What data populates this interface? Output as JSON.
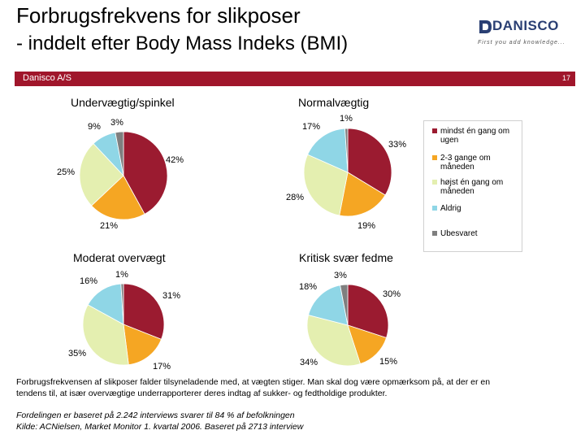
{
  "title_line1": "Forbrugsfrekvens for slikposer",
  "title_line2": "- inddelt efter Body Mass Indeks (BMI)",
  "logo": {
    "name": "DANISCO",
    "tagline": "First you add knowledge..."
  },
  "band": {
    "company": "Danisco A/S",
    "page_number": "17"
  },
  "colors": {
    "band": "#a0162b",
    "logo": "#2a3f73"
  },
  "chart_data": [
    {
      "type": "pie",
      "title": "Undervægtig/spinkel",
      "categories": [
        "mindst én gang om ugen",
        "2-3 gange om måneden",
        "højst én gang om måneden",
        "Aldrig",
        "Ubesvaret"
      ],
      "values": [
        42,
        21,
        25,
        9,
        3
      ],
      "labels": [
        "42%",
        "21%",
        "25%",
        "9%",
        "3%"
      ],
      "colors": [
        "#9b1b30",
        "#f5a623",
        "#e4efb0",
        "#8fd6e6",
        "#7f7f7f"
      ]
    },
    {
      "type": "pie",
      "title": "Normalvægtig",
      "categories": [
        "mindst én gang om ugen",
        "2-3 gange om måneden",
        "højst én gang om måneden",
        "Aldrig",
        "Ubesvaret"
      ],
      "values": [
        33,
        19,
        28,
        17,
        1
      ],
      "labels": [
        "33%",
        "19%",
        "28%",
        "17%",
        "1%"
      ],
      "colors": [
        "#9b1b30",
        "#f5a623",
        "#e4efb0",
        "#8fd6e6",
        "#7f7f7f"
      ]
    },
    {
      "type": "pie",
      "title": "Moderat overvægt",
      "categories": [
        "mindst én gang om ugen",
        "2-3 gange om måneden",
        "højst én gang om måneden",
        "Aldrig",
        "Ubesvaret"
      ],
      "values": [
        31,
        17,
        35,
        16,
        1
      ],
      "labels": [
        "31%",
        "17%",
        "35%",
        "16%",
        "1%"
      ],
      "colors": [
        "#9b1b30",
        "#f5a623",
        "#e4efb0",
        "#8fd6e6",
        "#7f7f7f"
      ]
    },
    {
      "type": "pie",
      "title": "Kritisk svær fedme",
      "categories": [
        "mindst én gang om ugen",
        "2-3 gange om måneden",
        "højst én gang om måneden",
        "Aldrig",
        "Ubesvaret"
      ],
      "values": [
        30,
        15,
        34,
        18,
        3
      ],
      "labels": [
        "30%",
        "15%",
        "34%",
        "18%",
        "3%"
      ],
      "colors": [
        "#9b1b30",
        "#f5a623",
        "#e4efb0",
        "#8fd6e6",
        "#7f7f7f"
      ]
    }
  ],
  "legend": {
    "items": [
      {
        "label": "mindst én gang om ugen",
        "color": "#9b1b30"
      },
      {
        "label": "2-3 gange om måneden",
        "color": "#f5a623"
      },
      {
        "label": "højst én gang om måneden",
        "color": "#e4efb0"
      },
      {
        "label": "Aldrig",
        "color": "#8fd6e6"
      },
      {
        "label": "Ubesvaret",
        "color": "#7f7f7f"
      }
    ]
  },
  "note": "Forbrugsfrekvensen af slikposer falder tilsyneladende med, at vægten stiger. Man skal dog være opmærksom på, at der er en tendens til, at især overvægtige underrapporterer deres indtag af sukker- og fedtholdige produkter.",
  "footnote1": "Fordelingen er baseret på 2.242 interviews svarer til 84 % af befolkningen",
  "footnote2": "Kilde: ACNielsen, Market Monitor 1. kvartal 2006. Baseret på 2713 interview"
}
